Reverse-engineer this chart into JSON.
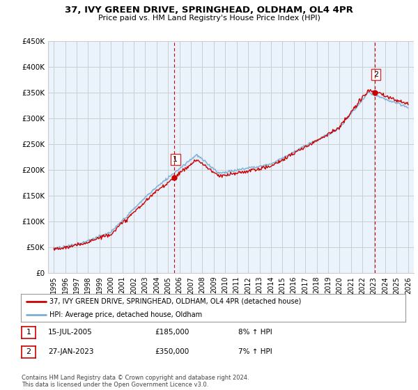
{
  "title": "37, IVY GREEN DRIVE, SPRINGHEAD, OLDHAM, OL4 4PR",
  "subtitle": "Price paid vs. HM Land Registry's House Price Index (HPI)",
  "ylim": [
    0,
    450000
  ],
  "yticks": [
    0,
    50000,
    100000,
    150000,
    200000,
    250000,
    300000,
    350000,
    400000,
    450000
  ],
  "x_start_year": 1995,
  "x_end_year": 2026,
  "sale1_date_num": 2005.54,
  "sale1_price": 185000,
  "sale1_label": "1",
  "sale2_date_num": 2023.08,
  "sale2_price": 350000,
  "sale2_label": "2",
  "legend_line1": "37, IVY GREEN DRIVE, SPRINGHEAD, OLDHAM, OL4 4PR (detached house)",
  "legend_line2": "HPI: Average price, detached house, Oldham",
  "note1_label": "1",
  "note1_date": "15-JUL-2005",
  "note1_price": "£185,000",
  "note1_hpi": "8% ↑ HPI",
  "note2_label": "2",
  "note2_date": "27-JAN-2023",
  "note2_price": "£350,000",
  "note2_hpi": "7% ↑ HPI",
  "footer": "Contains HM Land Registry data © Crown copyright and database right 2024.\nThis data is licensed under the Open Government Licence v3.0.",
  "hpi_color": "#7bafd4",
  "price_color": "#cc0000",
  "fill_color": "#dce9f5",
  "sale_marker_color": "#cc0000",
  "vline_color": "#cc0000",
  "grid_color": "#cccccc",
  "background_color": "#ffffff"
}
